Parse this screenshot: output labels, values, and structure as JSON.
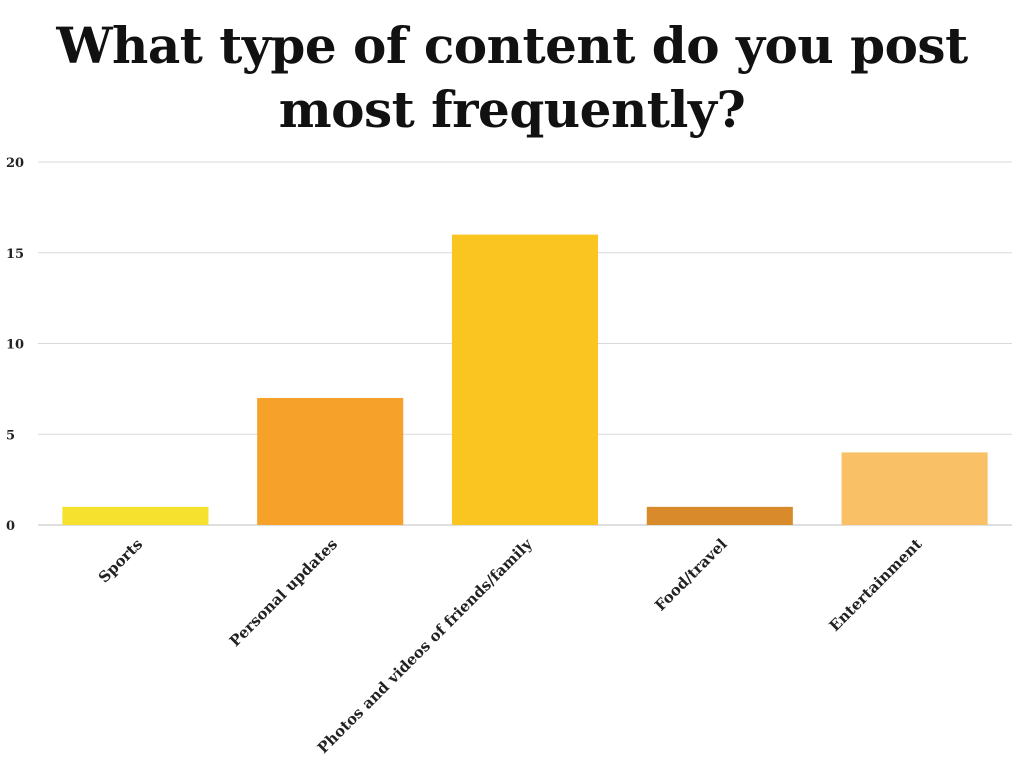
{
  "chart_data": {
    "type": "bar",
    "title": "What type of content do you post most frequently?",
    "categories": [
      "Sports",
      "Personal updates",
      "Photos and videos of friends/family",
      "Food/travel",
      "Entertainment"
    ],
    "values": [
      1,
      7,
      16,
      1,
      4
    ],
    "colors": [
      "#f5e12e",
      "#f5a12a",
      "#fbc521",
      "#d98b2b",
      "#f9c066"
    ],
    "ylim": [
      0,
      20
    ],
    "yticks": [
      "0",
      "5",
      "10",
      "15",
      "20"
    ],
    "grid": true,
    "legend": "none"
  }
}
